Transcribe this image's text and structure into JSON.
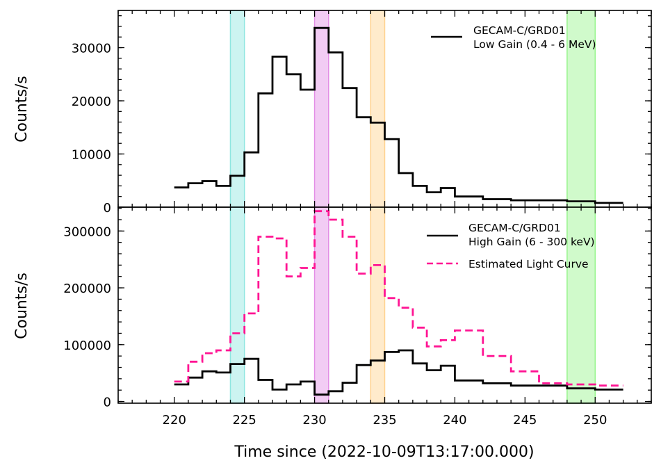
{
  "chart_data": {
    "type": "line",
    "xlabel": "Time since (2022-10-09T13:17:00.000)",
    "xlim": [
      216,
      254
    ],
    "x_ticks": [
      "220",
      "225",
      "230",
      "235",
      "240",
      "245",
      "250"
    ],
    "highlight_bands": [
      {
        "x0": 224,
        "x1": 225,
        "color": "#8ee6e0"
      },
      {
        "x0": 230,
        "x1": 231,
        "color": "#e38ee6"
      },
      {
        "x0": 234,
        "x1": 235,
        "color": "#ffd28f"
      },
      {
        "x0": 248,
        "x1": 250,
        "color": "#96f58c"
      }
    ],
    "panels": [
      {
        "ylabel": "Counts/s",
        "ylim": [
          0,
          37000
        ],
        "y_ticks": [
          {
            "value": 0,
            "label": "0"
          },
          {
            "value": 10000,
            "label": "10000"
          },
          {
            "value": 20000,
            "label": "20000"
          },
          {
            "value": 30000,
            "label": "30000"
          }
        ],
        "legend_position": "top-right",
        "series": [
          {
            "name": "GECAM-C/GRD01\nLow Gain (0.4 - 6 MeV)",
            "style": "solid",
            "color": "#000000",
            "edges": [
              220,
              221,
              222,
              223,
              224,
              225,
              226,
              227,
              228,
              229,
              230,
              231,
              232,
              233,
              234,
              235,
              236,
              237,
              238,
              239,
              240,
              242,
              244,
              248,
              250,
              252
            ],
            "values": [
              3700,
              4500,
              4900,
              4000,
              5900,
              10300,
              21400,
              28300,
              25000,
              22100,
              33700,
              29100,
              22400,
              16900,
              15900,
              12800,
              6400,
              4000,
              2800,
              3600,
              2000,
              1500,
              1300,
              1100,
              800
            ]
          }
        ]
      },
      {
        "ylabel": "Counts/s",
        "ylim": [
          -3000,
          342000
        ],
        "y_ticks": [
          {
            "value": 0,
            "label": "0"
          },
          {
            "value": 100000,
            "label": "100000"
          },
          {
            "value": 200000,
            "label": "200000"
          },
          {
            "value": 300000,
            "label": "300000"
          }
        ],
        "legend_position": "top-right",
        "series": [
          {
            "name": "GECAM-C/GRD01\nHigh Gain (6 - 300 keV)",
            "style": "solid",
            "color": "#000000",
            "edges": [
              220,
              221,
              222,
              223,
              224,
              225,
              226,
              227,
              228,
              229,
              230,
              231,
              232,
              233,
              234,
              235,
              236,
              237,
              238,
              239,
              240,
              242,
              244,
              248,
              250,
              252
            ],
            "values": [
              30000,
              42000,
              53000,
              51000,
              66000,
              75000,
              38000,
              21000,
              30000,
              35000,
              12000,
              18000,
              33000,
              64000,
              72000,
              87000,
              90000,
              67000,
              55000,
              63000,
              37000,
              32000,
              28000,
              23000,
              21000
            ]
          },
          {
            "name": "Estimated Light Curve",
            "style": "dashed",
            "color": "#ff1493",
            "edges": [
              220,
              221,
              222,
              223,
              224,
              225,
              226,
              227,
              228,
              229,
              230,
              231,
              232,
              233,
              234,
              235,
              236,
              237,
              238,
              239,
              240,
              242,
              244,
              246,
              248,
              250,
              252
            ],
            "values": [
              35000,
              70000,
              85000,
              90000,
              120000,
              155000,
              290000,
              287000,
              220000,
              235000,
              335000,
              320000,
              290000,
              225000,
              240000,
              182000,
              165000,
              130000,
              97000,
              108000,
              125000,
              80000,
              53000,
              32000,
              30000,
              28000
            ]
          }
        ]
      }
    ]
  }
}
